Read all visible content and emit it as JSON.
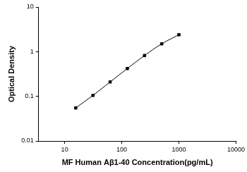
{
  "chart_data": {
    "type": "line",
    "x_label": "MF Human Aβ1-40 Concentration(pg/mL)",
    "y_label": "Optical Density",
    "x": [
      15.625,
      31.25,
      62.5,
      125,
      250,
      500,
      1000
    ],
    "series": [
      {
        "color": "#000000",
        "marker": "square",
        "line_style": "solid",
        "values": [
          0.055,
          0.105,
          0.21,
          0.42,
          0.82,
          1.5,
          2.4
        ]
      }
    ],
    "log": true,
    "xlim": [
      3.5,
      10000
    ],
    "xticks": [
      10,
      100,
      1000,
      10000
    ],
    "ylim": [
      0.01,
      10
    ],
    "yticks": [
      0.01,
      0.1,
      1,
      10
    ],
    "grid": false
  }
}
